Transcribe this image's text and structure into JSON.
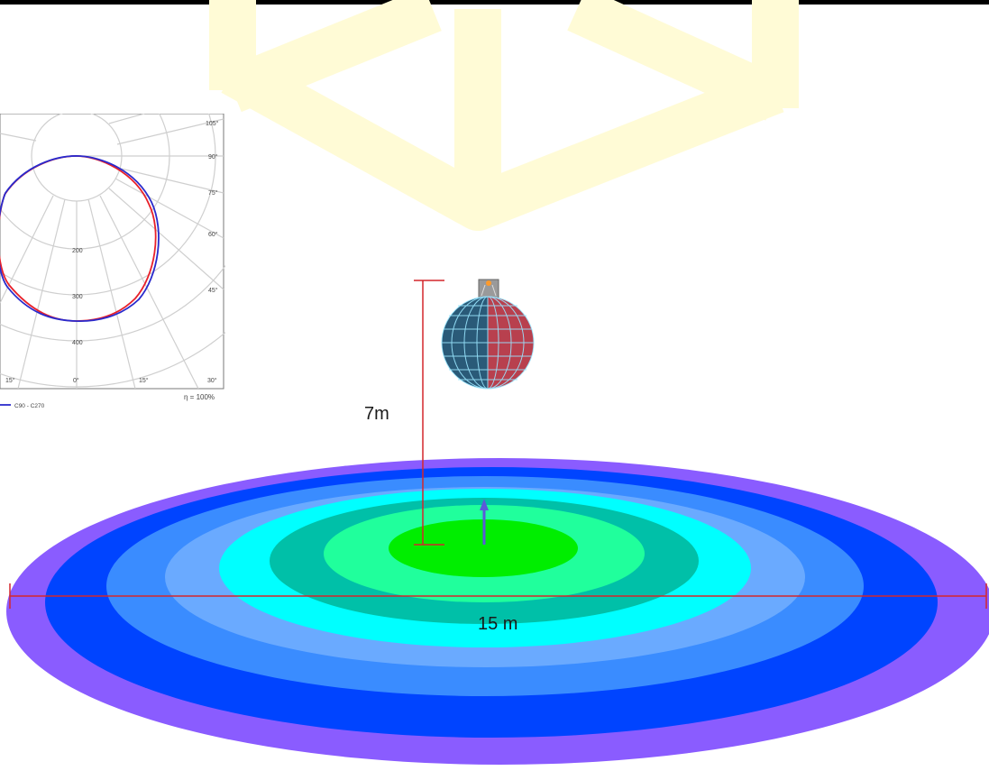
{
  "polar_chart": {
    "angle_labels_right": [
      "105°",
      "90°",
      "75°",
      "60°",
      "45°",
      "30°"
    ],
    "bottom_angle_labels": [
      "15°",
      "0°",
      "15°"
    ],
    "radial_labels": [
      "200",
      "300",
      "400"
    ],
    "efficiency": "η = 100%",
    "legend_label": "C90 - C270",
    "colors": {
      "c0": "#e8202a",
      "c90": "#2a2acc"
    }
  },
  "scene": {
    "height_label": "7m",
    "width_label": "15 m",
    "luminaire_name": "globe-luminaire",
    "colors": {
      "dimension_lines": "#d4262c",
      "rings": [
        "#8a5cff",
        "#0044ff",
        "#3a8cff",
        "#6aaaff",
        "#00ffff",
        "#00c0a8",
        "#20ff9c",
        "#00ee00"
      ]
    }
  }
}
